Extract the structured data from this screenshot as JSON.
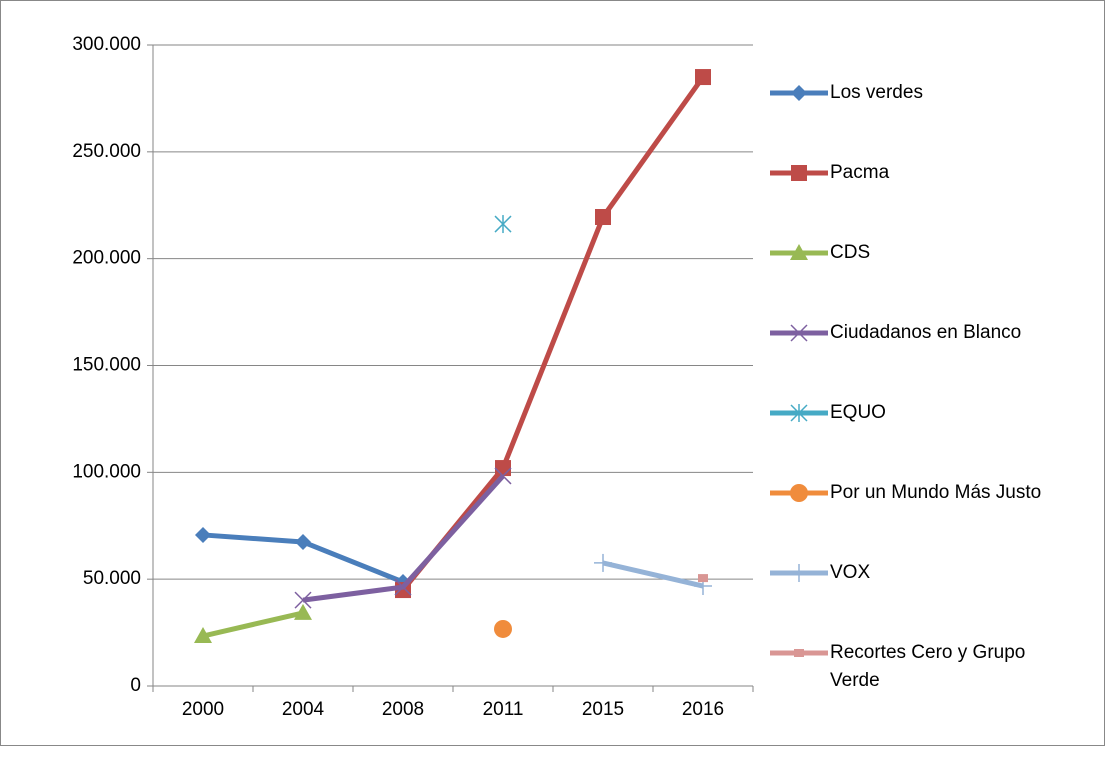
{
  "chart_data": {
    "type": "line",
    "categories": [
      "2000",
      "2004",
      "2008",
      "2011",
      "2015",
      "2016"
    ],
    "series": [
      {
        "name": "Los verdes",
        "color": "#4a7ebb",
        "marker": "diamond",
        "values": [
          70700,
          67400,
          48700,
          null,
          null,
          null
        ]
      },
      {
        "name": "Pacma",
        "color": "#be4b48",
        "marker": "square",
        "values": [
          null,
          null,
          44900,
          102000,
          219500,
          285000
        ]
      },
      {
        "name": "CDS",
        "color": "#98b954",
        "marker": "triangle",
        "values": [
          23400,
          34200,
          null,
          null,
          null,
          null
        ]
      },
      {
        "name": "Ciudadanos en Blanco",
        "color": "#7d60a0",
        "marker": "x",
        "values": [
          null,
          40200,
          46300,
          98300,
          null,
          null
        ]
      },
      {
        "name": "EQUO",
        "color": "#46aac5",
        "marker": "asterisk",
        "values": [
          null,
          null,
          null,
          216200,
          null,
          null
        ]
      },
      {
        "name": "Por un Mundo Más Justo",
        "color": "#f08c3c",
        "marker": "circle",
        "values": [
          null,
          null,
          null,
          26700,
          null,
          null
        ]
      },
      {
        "name": "VOX",
        "color": "#95b3d7",
        "marker": "plus",
        "values": [
          null,
          null,
          null,
          null,
          57600,
          46800
        ]
      },
      {
        "name": "Recortes Cero y Grupo Verde",
        "color": "#d99694",
        "marker": "dash",
        "values": [
          null,
          null,
          null,
          null,
          null,
          50500
        ]
      }
    ],
    "ylim": [
      0,
      300000
    ],
    "yticks": [
      0,
      {
        "value": 50000,
        "label": "50.000"
      },
      {
        "value": 100000,
        "label": "100.000"
      },
      {
        "value": 150000,
        "label": "150.000"
      },
      {
        "value": 200000,
        "label": "200.000"
      },
      {
        "value": 250000,
        "label": "250.000"
      },
      {
        "value": 300000,
        "label": "300.000"
      }
    ],
    "grid": true,
    "legend": "right"
  }
}
